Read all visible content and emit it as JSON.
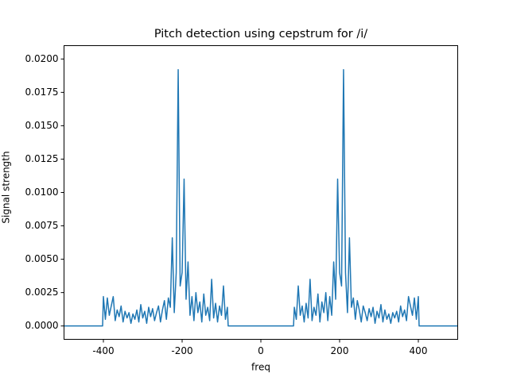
{
  "chart_data": {
    "type": "line",
    "title": "Pitch detection using cepstrum for /i/",
    "x_label": "freq",
    "y_label": "Signal strength",
    "xlim": [
      -500,
      500
    ],
    "ylim": [
      -0.001,
      0.021
    ],
    "xticks": [
      -400,
      -200,
      0,
      200,
      400
    ],
    "yticks": [
      {
        "value": 0,
        "label": "0.0000"
      },
      {
        "value": 0.0025,
        "label": "0.0025"
      },
      {
        "value": 0.005,
        "label": "0.0050"
      },
      {
        "value": 0.0075,
        "label": "0.0075"
      },
      {
        "value": 0.01,
        "label": "0.0100"
      },
      {
        "value": 0.0125,
        "label": "0.0125"
      },
      {
        "value": 0.015,
        "label": "0.0150"
      },
      {
        "value": 0.0175,
        "label": "0.0175"
      },
      {
        "value": 0.02,
        "label": "0.0200"
      }
    ],
    "grid": false,
    "series": [
      {
        "color": "#1f77b4",
        "x": [
          -500,
          -402,
          -400,
          -395,
          -390,
          -385,
          -380,
          -375,
          -370,
          -365,
          -360,
          -355,
          -350,
          -345,
          -340,
          -335,
          -330,
          -325,
          -320,
          -315,
          -310,
          -305,
          -300,
          -295,
          -290,
          -285,
          -280,
          -275,
          -270,
          -265,
          -260,
          -255,
          -250,
          -245,
          -240,
          -235,
          -230,
          -225,
          -220,
          -215,
          -210,
          -205,
          -200,
          -195,
          -190,
          -185,
          -180,
          -175,
          -170,
          -165,
          -160,
          -155,
          -150,
          -145,
          -140,
          -135,
          -130,
          -125,
          -120,
          -115,
          -110,
          -105,
          -100,
          -95,
          -90,
          -85,
          -83,
          0,
          83,
          85,
          90,
          95,
          100,
          105,
          110,
          115,
          120,
          125,
          130,
          135,
          140,
          145,
          150,
          155,
          160,
          165,
          170,
          175,
          180,
          185,
          190,
          195,
          200,
          205,
          210,
          215,
          220,
          225,
          230,
          235,
          240,
          245,
          250,
          255,
          260,
          265,
          270,
          275,
          280,
          285,
          290,
          295,
          300,
          305,
          310,
          315,
          320,
          325,
          330,
          335,
          340,
          345,
          350,
          355,
          360,
          365,
          370,
          375,
          380,
          385,
          390,
          395,
          400,
          402,
          500
        ],
        "values": [
          0,
          0,
          0.0022,
          0.0005,
          0.0021,
          0.0008,
          0.0015,
          0.0022,
          0.0004,
          0.0012,
          0.0007,
          0.0015,
          0.0003,
          0.0011,
          0.0006,
          0.001,
          0.0002,
          0.0009,
          0.0005,
          0.0012,
          0.0003,
          0.0016,
          0.0006,
          0.0011,
          0.0002,
          0.0014,
          0.0007,
          0.0013,
          0.0004,
          0.001,
          0.0015,
          0.0003,
          0.0012,
          0.0019,
          0.0005,
          0.0021,
          0.0014,
          0.0066,
          0.001,
          0.004,
          0.0192,
          0.003,
          0.004,
          0.011,
          0.002,
          0.0048,
          0.0008,
          0.0022,
          0.0004,
          0.0025,
          0.001,
          0.0018,
          0.0003,
          0.0024,
          0.0008,
          0.0014,
          0.0004,
          0.0035,
          0.0006,
          0.0017,
          0.0003,
          0.0015,
          0.0008,
          0.003,
          0.0005,
          0.0014,
          0,
          0,
          0,
          0.0014,
          0.0005,
          0.003,
          0.0008,
          0.0015,
          0.0003,
          0.0017,
          0.0006,
          0.0035,
          0.0004,
          0.0014,
          0.0008,
          0.0024,
          0.0003,
          0.0018,
          0.001,
          0.0025,
          0.0004,
          0.0022,
          0.0008,
          0.0048,
          0.002,
          0.011,
          0.004,
          0.003,
          0.0192,
          0.004,
          0.001,
          0.0066,
          0.0014,
          0.0021,
          0.0005,
          0.0019,
          0.0012,
          0.0003,
          0.0015,
          0.001,
          0.0004,
          0.0013,
          0.0007,
          0.0014,
          0.0002,
          0.0011,
          0.0006,
          0.0016,
          0.0003,
          0.0012,
          0.0005,
          0.0009,
          0.0002,
          0.001,
          0.0006,
          0.0011,
          0.0003,
          0.0015,
          0.0007,
          0.0012,
          0.0004,
          0.0022,
          0.0015,
          0.0008,
          0.0021,
          0.0005,
          0.0022,
          0,
          0
        ]
      }
    ]
  }
}
